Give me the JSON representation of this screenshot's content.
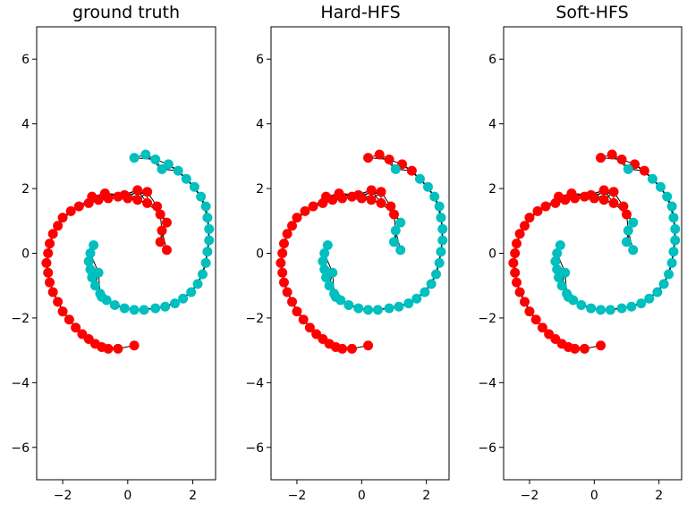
{
  "chart_data": [
    {
      "type": "scatter",
      "title": "ground truth",
      "xlim": [
        -2.8,
        2.7
      ],
      "ylim": [
        -7,
        7
      ],
      "xticks": [
        "−2",
        "0",
        "2"
      ],
      "yticks": [
        "−6",
        "−4",
        "−2",
        "0",
        "2",
        "4",
        "6"
      ],
      "point_colors": {
        "red": "#ff0000",
        "cyan": "#00bfbf"
      },
      "edge_color": "#000000"
    },
    {
      "type": "scatter",
      "title": "Hard-HFS",
      "xlim": [
        -2.8,
        2.7
      ],
      "ylim": [
        -7,
        7
      ],
      "xticks": [
        "−2",
        "0",
        "2"
      ],
      "yticks": [
        "−6",
        "−4",
        "−2",
        "0",
        "2",
        "4",
        "6"
      ],
      "point_colors": {
        "red": "#ff0000",
        "cyan": "#00bfbf"
      },
      "edge_color": "#000000"
    },
    {
      "type": "scatter",
      "title": "Soft-HFS",
      "xlim": [
        -2.8,
        2.7
      ],
      "ylim": [
        -7,
        7
      ],
      "xticks": [
        "−2",
        "0",
        "2"
      ],
      "yticks": [
        "−6",
        "−4",
        "−2",
        "0",
        "2",
        "4",
        "6"
      ],
      "point_colors": {
        "red": "#ff0000",
        "cyan": "#00bfbf"
      },
      "edge_color": "#000000"
    }
  ]
}
